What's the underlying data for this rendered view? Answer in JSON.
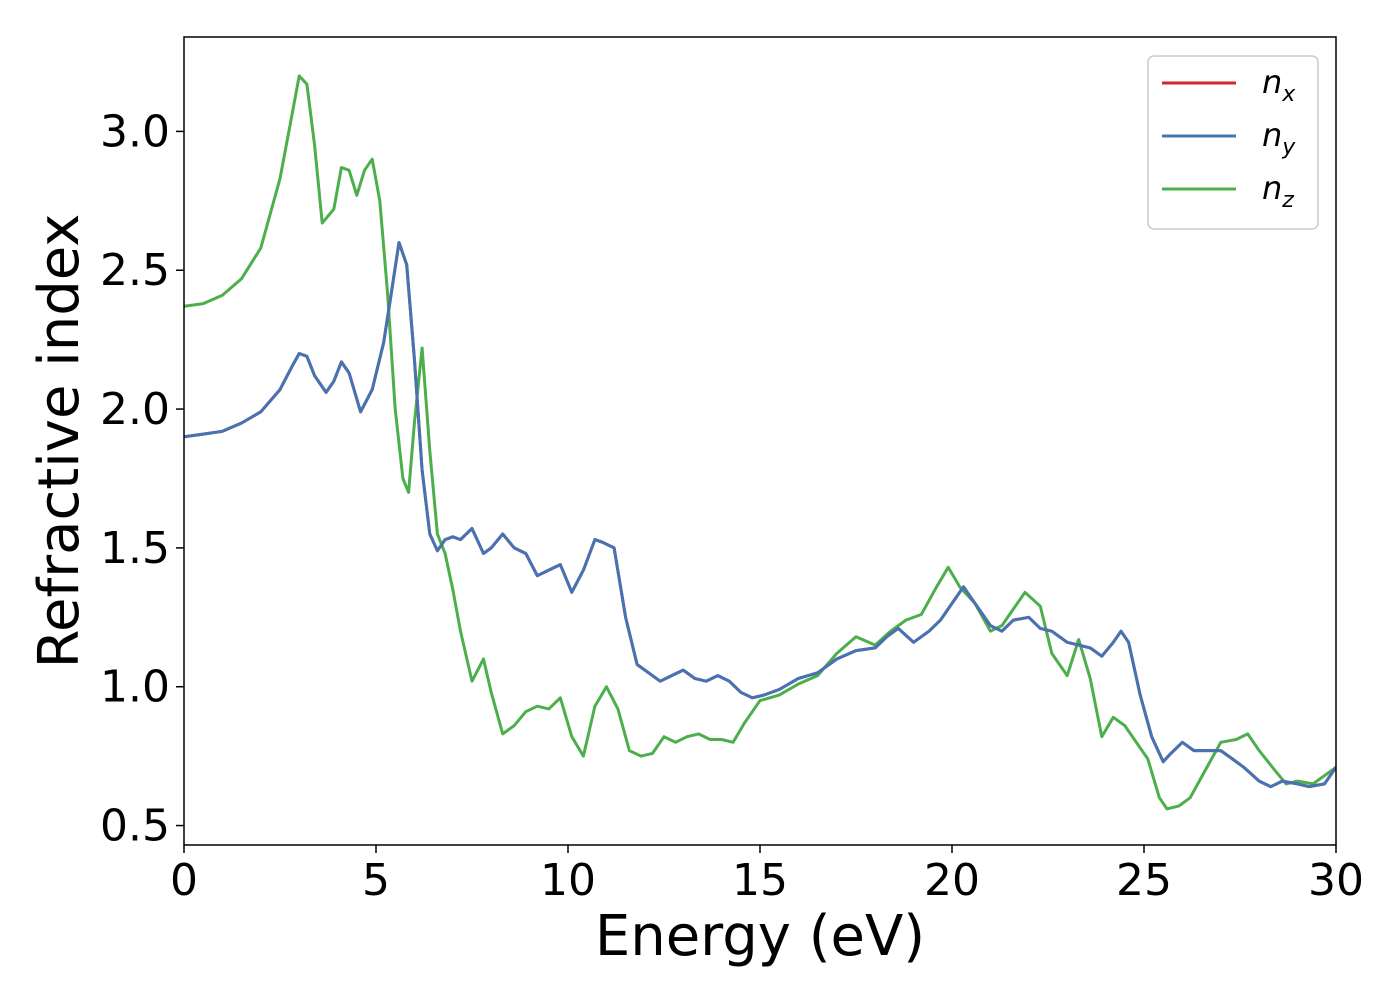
{
  "chart_data": {
    "type": "line",
    "title": "",
    "xlabel": "Energy (eV)",
    "ylabel": "Refractive index",
    "xlim": [
      0,
      30
    ],
    "ylim": [
      0.43,
      3.34
    ],
    "xticks": [
      0,
      5,
      10,
      15,
      20,
      25,
      30
    ],
    "xtick_labels": [
      "0",
      "5",
      "10",
      "15",
      "20",
      "25",
      "30"
    ],
    "yticks": [
      0.5,
      1.0,
      1.5,
      2.0,
      2.5,
      3.0
    ],
    "ytick_labels": [
      "0.5",
      "1.0",
      "1.5",
      "2.0",
      "2.5",
      "3.0"
    ],
    "grid": false,
    "legend_position": "top-right",
    "colors": {
      "n_x": "#d62728",
      "n_y": "#4474b4",
      "n_z": "#4caf4c"
    },
    "series": [
      {
        "name": "n_x",
        "legend_base": "n",
        "legend_sub": "x",
        "color": "#d62728",
        "x": [
          0,
          0.5,
          1,
          1.5,
          2,
          2.5,
          2.8,
          3.0,
          3.2,
          3.4,
          3.7,
          3.9,
          4.1,
          4.3,
          4.6,
          4.9,
          5.2,
          5.4,
          5.6,
          5.8,
          6.0,
          6.2,
          6.4,
          6.6,
          6.8,
          7.0,
          7.2,
          7.5,
          7.8,
          8.0,
          8.3,
          8.6,
          8.9,
          9.2,
          9.5,
          9.8,
          10.1,
          10.4,
          10.7,
          10.9,
          11.2,
          11.5,
          11.8,
          12.1,
          12.4,
          12.7,
          13.0,
          13.3,
          13.6,
          13.9,
          14.2,
          14.5,
          14.8,
          15.1,
          15.5,
          16.0,
          16.5,
          17.0,
          17.5,
          18.0,
          18.3,
          18.6,
          19.0,
          19.4,
          19.7,
          20.0,
          20.3,
          20.6,
          21.0,
          21.3,
          21.6,
          22.0,
          22.3,
          22.6,
          23.0,
          23.3,
          23.6,
          23.9,
          24.2,
          24.4,
          24.6,
          24.9,
          25.2,
          25.5,
          25.7,
          26.0,
          26.3,
          26.6,
          27.0,
          27.3,
          27.6,
          28.0,
          28.3,
          28.6,
          29.0,
          29.3,
          29.7,
          30.0
        ],
        "y": [
          1.9,
          1.91,
          1.92,
          1.95,
          1.99,
          2.07,
          2.15,
          2.2,
          2.19,
          2.12,
          2.06,
          2.1,
          2.17,
          2.13,
          1.99,
          2.07,
          2.24,
          2.42,
          2.6,
          2.52,
          2.18,
          1.78,
          1.55,
          1.49,
          1.53,
          1.54,
          1.53,
          1.57,
          1.48,
          1.5,
          1.55,
          1.5,
          1.48,
          1.4,
          1.42,
          1.44,
          1.34,
          1.42,
          1.53,
          1.52,
          1.5,
          1.25,
          1.08,
          1.05,
          1.02,
          1.04,
          1.06,
          1.03,
          1.02,
          1.04,
          1.02,
          0.98,
          0.96,
          0.97,
          0.99,
          1.03,
          1.05,
          1.1,
          1.13,
          1.14,
          1.18,
          1.21,
          1.16,
          1.2,
          1.24,
          1.3,
          1.36,
          1.3,
          1.22,
          1.2,
          1.24,
          1.25,
          1.21,
          1.2,
          1.16,
          1.15,
          1.14,
          1.11,
          1.16,
          1.2,
          1.16,
          0.97,
          0.82,
          0.73,
          0.76,
          0.8,
          0.77,
          0.77,
          0.77,
          0.74,
          0.71,
          0.66,
          0.64,
          0.66,
          0.65,
          0.64,
          0.65,
          0.71
        ]
      },
      {
        "name": "n_y",
        "legend_base": "n",
        "legend_sub": "y",
        "color": "#4474b4",
        "x": [
          0,
          0.5,
          1,
          1.5,
          2,
          2.5,
          2.8,
          3.0,
          3.2,
          3.4,
          3.7,
          3.9,
          4.1,
          4.3,
          4.6,
          4.9,
          5.2,
          5.4,
          5.6,
          5.8,
          6.0,
          6.2,
          6.4,
          6.6,
          6.8,
          7.0,
          7.2,
          7.5,
          7.8,
          8.0,
          8.3,
          8.6,
          8.9,
          9.2,
          9.5,
          9.8,
          10.1,
          10.4,
          10.7,
          10.9,
          11.2,
          11.5,
          11.8,
          12.1,
          12.4,
          12.7,
          13.0,
          13.3,
          13.6,
          13.9,
          14.2,
          14.5,
          14.8,
          15.1,
          15.5,
          16.0,
          16.5,
          17.0,
          17.5,
          18.0,
          18.3,
          18.6,
          19.0,
          19.4,
          19.7,
          20.0,
          20.3,
          20.6,
          21.0,
          21.3,
          21.6,
          22.0,
          22.3,
          22.6,
          23.0,
          23.3,
          23.6,
          23.9,
          24.2,
          24.4,
          24.6,
          24.9,
          25.2,
          25.5,
          25.7,
          26.0,
          26.3,
          26.6,
          27.0,
          27.3,
          27.6,
          28.0,
          28.3,
          28.6,
          29.0,
          29.3,
          29.7,
          30.0
        ],
        "y": [
          1.9,
          1.91,
          1.92,
          1.95,
          1.99,
          2.07,
          2.15,
          2.2,
          2.19,
          2.12,
          2.06,
          2.1,
          2.17,
          2.13,
          1.99,
          2.07,
          2.24,
          2.42,
          2.6,
          2.52,
          2.18,
          1.78,
          1.55,
          1.49,
          1.53,
          1.54,
          1.53,
          1.57,
          1.48,
          1.5,
          1.55,
          1.5,
          1.48,
          1.4,
          1.42,
          1.44,
          1.34,
          1.42,
          1.53,
          1.52,
          1.5,
          1.25,
          1.08,
          1.05,
          1.02,
          1.04,
          1.06,
          1.03,
          1.02,
          1.04,
          1.02,
          0.98,
          0.96,
          0.97,
          0.99,
          1.03,
          1.05,
          1.1,
          1.13,
          1.14,
          1.18,
          1.21,
          1.16,
          1.2,
          1.24,
          1.3,
          1.36,
          1.3,
          1.22,
          1.2,
          1.24,
          1.25,
          1.21,
          1.2,
          1.16,
          1.15,
          1.14,
          1.11,
          1.16,
          1.2,
          1.16,
          0.97,
          0.82,
          0.73,
          0.76,
          0.8,
          0.77,
          0.77,
          0.77,
          0.74,
          0.71,
          0.66,
          0.64,
          0.66,
          0.65,
          0.64,
          0.65,
          0.71
        ]
      },
      {
        "name": "n_z",
        "legend_base": "n",
        "legend_sub": "z",
        "color": "#4caf4c",
        "x": [
          0,
          0.5,
          1,
          1.5,
          2,
          2.5,
          2.8,
          3.0,
          3.2,
          3.4,
          3.6,
          3.9,
          4.1,
          4.3,
          4.5,
          4.7,
          4.9,
          5.1,
          5.3,
          5.5,
          5.7,
          5.85,
          6.0,
          6.2,
          6.4,
          6.6,
          6.8,
          7.0,
          7.2,
          7.5,
          7.8,
          8.0,
          8.3,
          8.6,
          8.9,
          9.2,
          9.5,
          9.8,
          10.1,
          10.4,
          10.7,
          11.0,
          11.3,
          11.6,
          11.9,
          12.2,
          12.5,
          12.8,
          13.1,
          13.4,
          13.7,
          14.0,
          14.3,
          14.6,
          15.0,
          15.5,
          16.0,
          16.5,
          17.0,
          17.5,
          18.0,
          18.4,
          18.8,
          19.2,
          19.6,
          19.9,
          20.2,
          20.6,
          21.0,
          21.3,
          21.6,
          21.9,
          22.3,
          22.6,
          23.0,
          23.3,
          23.6,
          23.9,
          24.2,
          24.5,
          24.8,
          25.1,
          25.4,
          25.6,
          25.9,
          26.2,
          26.6,
          27.0,
          27.4,
          27.7,
          28.0,
          28.4,
          28.7,
          29.0,
          29.4,
          29.7,
          30.0
        ],
        "y": [
          2.37,
          2.38,
          2.41,
          2.47,
          2.58,
          2.83,
          3.05,
          3.2,
          3.17,
          2.95,
          2.67,
          2.72,
          2.87,
          2.86,
          2.77,
          2.86,
          2.9,
          2.75,
          2.42,
          2.0,
          1.75,
          1.7,
          1.95,
          2.22,
          1.85,
          1.55,
          1.48,
          1.35,
          1.2,
          1.02,
          1.1,
          0.98,
          0.83,
          0.86,
          0.91,
          0.93,
          0.92,
          0.96,
          0.82,
          0.75,
          0.93,
          1.0,
          0.92,
          0.77,
          0.75,
          0.76,
          0.82,
          0.8,
          0.82,
          0.83,
          0.81,
          0.81,
          0.8,
          0.87,
          0.95,
          0.97,
          1.01,
          1.04,
          1.12,
          1.18,
          1.15,
          1.2,
          1.24,
          1.26,
          1.36,
          1.43,
          1.36,
          1.3,
          1.2,
          1.22,
          1.28,
          1.34,
          1.29,
          1.12,
          1.04,
          1.17,
          1.03,
          0.82,
          0.89,
          0.86,
          0.8,
          0.74,
          0.6,
          0.56,
          0.57,
          0.6,
          0.7,
          0.8,
          0.81,
          0.83,
          0.77,
          0.7,
          0.65,
          0.66,
          0.65,
          0.68,
          0.71
        ]
      }
    ]
  }
}
